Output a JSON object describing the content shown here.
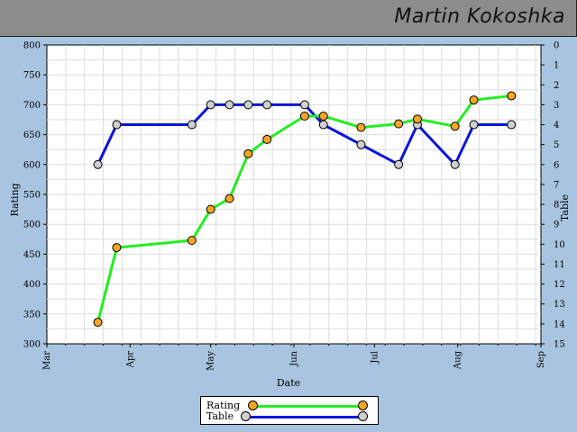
{
  "header": {
    "title": "Martin Kokoshka"
  },
  "chart_data": {
    "type": "line",
    "xlabel": "Date",
    "ylabel": "Rating",
    "y2label": "Table",
    "ylim": [
      300,
      800
    ],
    "y2lim": [
      15,
      0
    ],
    "x_ticks": [
      "Mar",
      "Apr",
      "May",
      "Jun",
      "Jul",
      "Aug",
      "Sep"
    ],
    "x_range": [
      "2024-03-01",
      "2024-09-01"
    ],
    "y_ticks": [
      300,
      350,
      400,
      450,
      500,
      550,
      600,
      650,
      700,
      750,
      800
    ],
    "y2_ticks": [
      0,
      1,
      2,
      3,
      4,
      5,
      6,
      7,
      8,
      9,
      10,
      11,
      12,
      13,
      14,
      15
    ],
    "grid": true,
    "legend_position": "bottom-center",
    "series": [
      {
        "name": "Rating",
        "axis": "left",
        "color": "#22ee22",
        "marker_color": "#f5a623",
        "points": [
          {
            "x": "2024-03-20",
            "y": 336
          },
          {
            "x": "2024-03-27",
            "y": 461
          },
          {
            "x": "2024-04-24",
            "y": 473
          },
          {
            "x": "2024-05-01",
            "y": 525
          },
          {
            "x": "2024-05-08",
            "y": 543
          },
          {
            "x": "2024-05-15",
            "y": 618
          },
          {
            "x": "2024-05-22",
            "y": 642
          },
          {
            "x": "2024-06-05",
            "y": 681
          },
          {
            "x": "2024-06-12",
            "y": 681
          },
          {
            "x": "2024-06-26",
            "y": 662
          },
          {
            "x": "2024-07-10",
            "y": 668
          },
          {
            "x": "2024-07-17",
            "y": 676
          },
          {
            "x": "2024-07-31",
            "y": 664
          },
          {
            "x": "2024-08-07",
            "y": 708
          },
          {
            "x": "2024-08-21",
            "y": 715
          }
        ]
      },
      {
        "name": "Table",
        "axis": "right",
        "color": "#0a14d8",
        "marker_color": "#cfcfcf",
        "points": [
          {
            "x": "2024-03-20",
            "y": 6
          },
          {
            "x": "2024-03-27",
            "y": 4
          },
          {
            "x": "2024-04-24",
            "y": 4
          },
          {
            "x": "2024-05-01",
            "y": 3
          },
          {
            "x": "2024-05-08",
            "y": 3
          },
          {
            "x": "2024-05-15",
            "y": 3
          },
          {
            "x": "2024-05-22",
            "y": 3
          },
          {
            "x": "2024-06-05",
            "y": 3
          },
          {
            "x": "2024-06-12",
            "y": 4
          },
          {
            "x": "2024-06-26",
            "y": 5
          },
          {
            "x": "2024-07-10",
            "y": 6
          },
          {
            "x": "2024-07-17",
            "y": 4
          },
          {
            "x": "2024-07-31",
            "y": 6
          },
          {
            "x": "2024-08-07",
            "y": 4
          },
          {
            "x": "2024-08-21",
            "y": 4
          }
        ]
      }
    ]
  }
}
